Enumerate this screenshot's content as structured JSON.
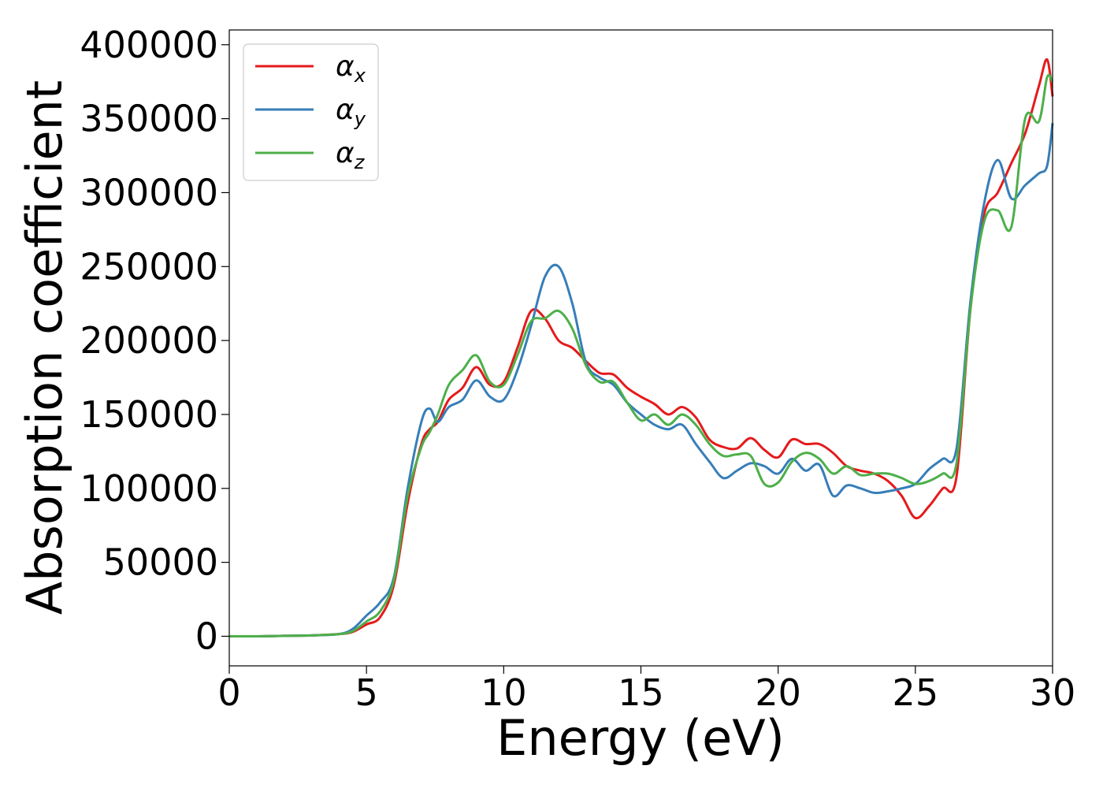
{
  "chart_data": {
    "type": "line",
    "title": "",
    "xlabel": "Energy (eV)",
    "ylabel": "Absorption coefficient",
    "xlim": [
      0,
      30
    ],
    "ylim": [
      -20000,
      410000
    ],
    "xticks": [
      0,
      5,
      10,
      15,
      20,
      25,
      30
    ],
    "yticks": [
      0,
      50000,
      100000,
      150000,
      200000,
      250000,
      300000,
      350000,
      400000
    ],
    "grid": false,
    "legend_position": "upper-left",
    "x": [
      0,
      1,
      2,
      3,
      4,
      4.5,
      5,
      5.5,
      6,
      6.5,
      7,
      7.3,
      7.6,
      8,
      8.5,
      9,
      9.5,
      10,
      10.5,
      11,
      11.5,
      12,
      12.5,
      13,
      13.5,
      14,
      14.5,
      15,
      15.5,
      16,
      16.5,
      17,
      17.5,
      18,
      18.5,
      19,
      19.5,
      20,
      20.5,
      21,
      21.5,
      22,
      22.5,
      23,
      23.5,
      24,
      24.5,
      25,
      25.5,
      26,
      26.5,
      27,
      27.5,
      28,
      28.5,
      29,
      29.5,
      29.8,
      30
    ],
    "series": [
      {
        "name": "α_x",
        "color": "#e41a1c",
        "values": [
          0,
          0,
          300,
          600,
          1500,
          3000,
          8000,
          13000,
          35000,
          90000,
          130000,
          140000,
          145000,
          160000,
          168000,
          182000,
          170000,
          172000,
          195000,
          220000,
          215000,
          200000,
          195000,
          186000,
          178000,
          177000,
          168000,
          162000,
          157000,
          150000,
          155000,
          148000,
          133000,
          128000,
          127000,
          134000,
          126000,
          121000,
          133000,
          130000,
          130000,
          124000,
          115000,
          112000,
          110000,
          105000,
          95000,
          80000,
          88000,
          100000,
          108000,
          220000,
          285000,
          300000,
          320000,
          340000,
          372000,
          390000,
          365000
        ]
      },
      {
        "name": "α_y",
        "color": "#377eb8",
        "values": [
          0,
          0,
          300,
          600,
          1500,
          5000,
          14000,
          23000,
          40000,
          100000,
          145000,
          154000,
          145000,
          155000,
          160000,
          173000,
          162000,
          160000,
          180000,
          210000,
          243000,
          250000,
          225000,
          185000,
          175000,
          170000,
          158000,
          150000,
          143000,
          140000,
          143000,
          130000,
          118000,
          107000,
          112000,
          117000,
          115000,
          110000,
          120000,
          112000,
          116000,
          95000,
          102000,
          100000,
          97000,
          98000,
          100000,
          103000,
          113000,
          120000,
          127000,
          225000,
          292000,
          322000,
          296000,
          305000,
          313000,
          318000,
          347000
        ]
      },
      {
        "name": "α_z",
        "color": "#4daf4a",
        "values": [
          0,
          0,
          300,
          600,
          1500,
          3500,
          10000,
          17000,
          38000,
          95000,
          128000,
          138000,
          150000,
          170000,
          180000,
          190000,
          172000,
          170000,
          190000,
          213000,
          215000,
          220000,
          208000,
          183000,
          172000,
          172000,
          158000,
          146000,
          150000,
          143000,
          150000,
          143000,
          130000,
          122000,
          123000,
          122000,
          103000,
          104000,
          118000,
          124000,
          120000,
          110000,
          115000,
          109000,
          110000,
          110000,
          107000,
          103000,
          105000,
          110000,
          117000,
          220000,
          280000,
          288000,
          277000,
          350000,
          348000,
          378000,
          375000
        ]
      }
    ]
  },
  "legend": {
    "entries": [
      {
        "symbol": "α",
        "subscript": "x",
        "color": "#e41a1c"
      },
      {
        "symbol": "α",
        "subscript": "y",
        "color": "#377eb8"
      },
      {
        "symbol": "α",
        "subscript": "z",
        "color": "#4daf4a"
      }
    ]
  }
}
